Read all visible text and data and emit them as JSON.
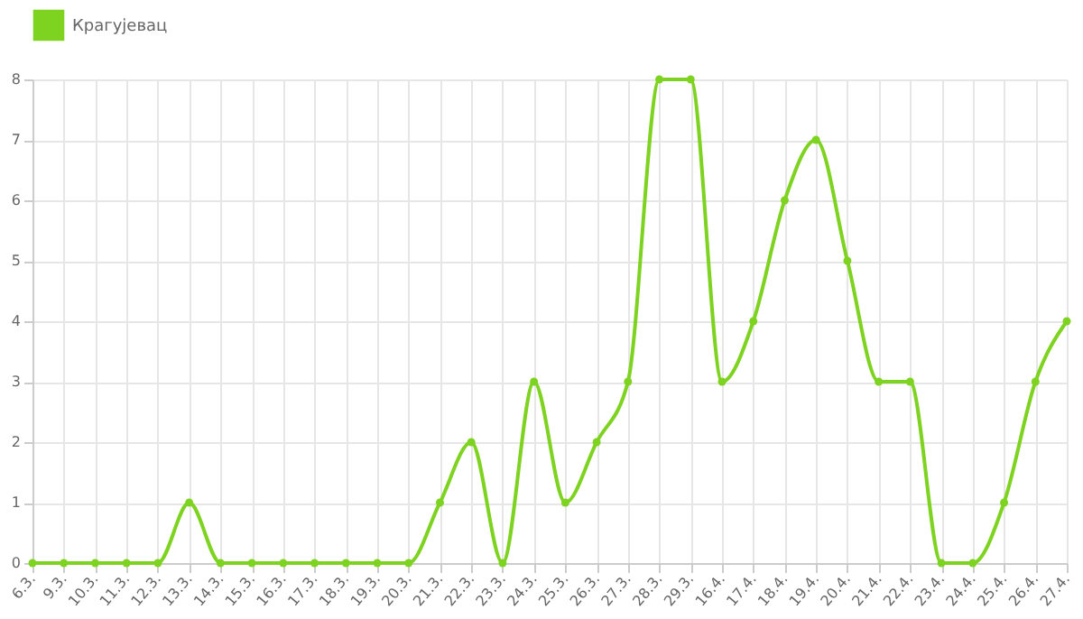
{
  "chart_data": {
    "type": "line",
    "categories": [
      "6.3.",
      "9.3.",
      "10.3.",
      "11.3.",
      "12.3.",
      "13.3.",
      "14.3.",
      "15.3.",
      "16.3.",
      "17.3.",
      "18.3.",
      "19.3.",
      "20.3.",
      "21.3.",
      "22.3.",
      "23.3.",
      "24.3.",
      "25.3.",
      "26.3.",
      "27.3.",
      "28.3.",
      "29.3.",
      "16.4.",
      "17.4.",
      "18.4.",
      "19.4.",
      "20.4.",
      "21.4.",
      "22.4.",
      "23.4.",
      "24.4.",
      "25.4.",
      "26.4.",
      "27.4."
    ],
    "series": [
      {
        "name": "Крагујевац",
        "color": "#7ed321",
        "values": [
          0,
          0,
          0,
          0,
          0,
          1,
          0,
          0,
          0,
          0,
          0,
          0,
          0,
          1,
          2,
          0,
          3,
          1,
          2,
          3,
          8,
          8,
          3,
          4,
          6,
          7,
          5,
          3,
          3,
          0,
          0,
          1,
          3,
          4
        ]
      }
    ],
    "ylim": [
      0,
      8
    ],
    "yticks": [
      0,
      1,
      2,
      3,
      4,
      5,
      6,
      7,
      8
    ],
    "grid": true,
    "legend": "top",
    "marker": "circle",
    "line_style": "solid"
  }
}
